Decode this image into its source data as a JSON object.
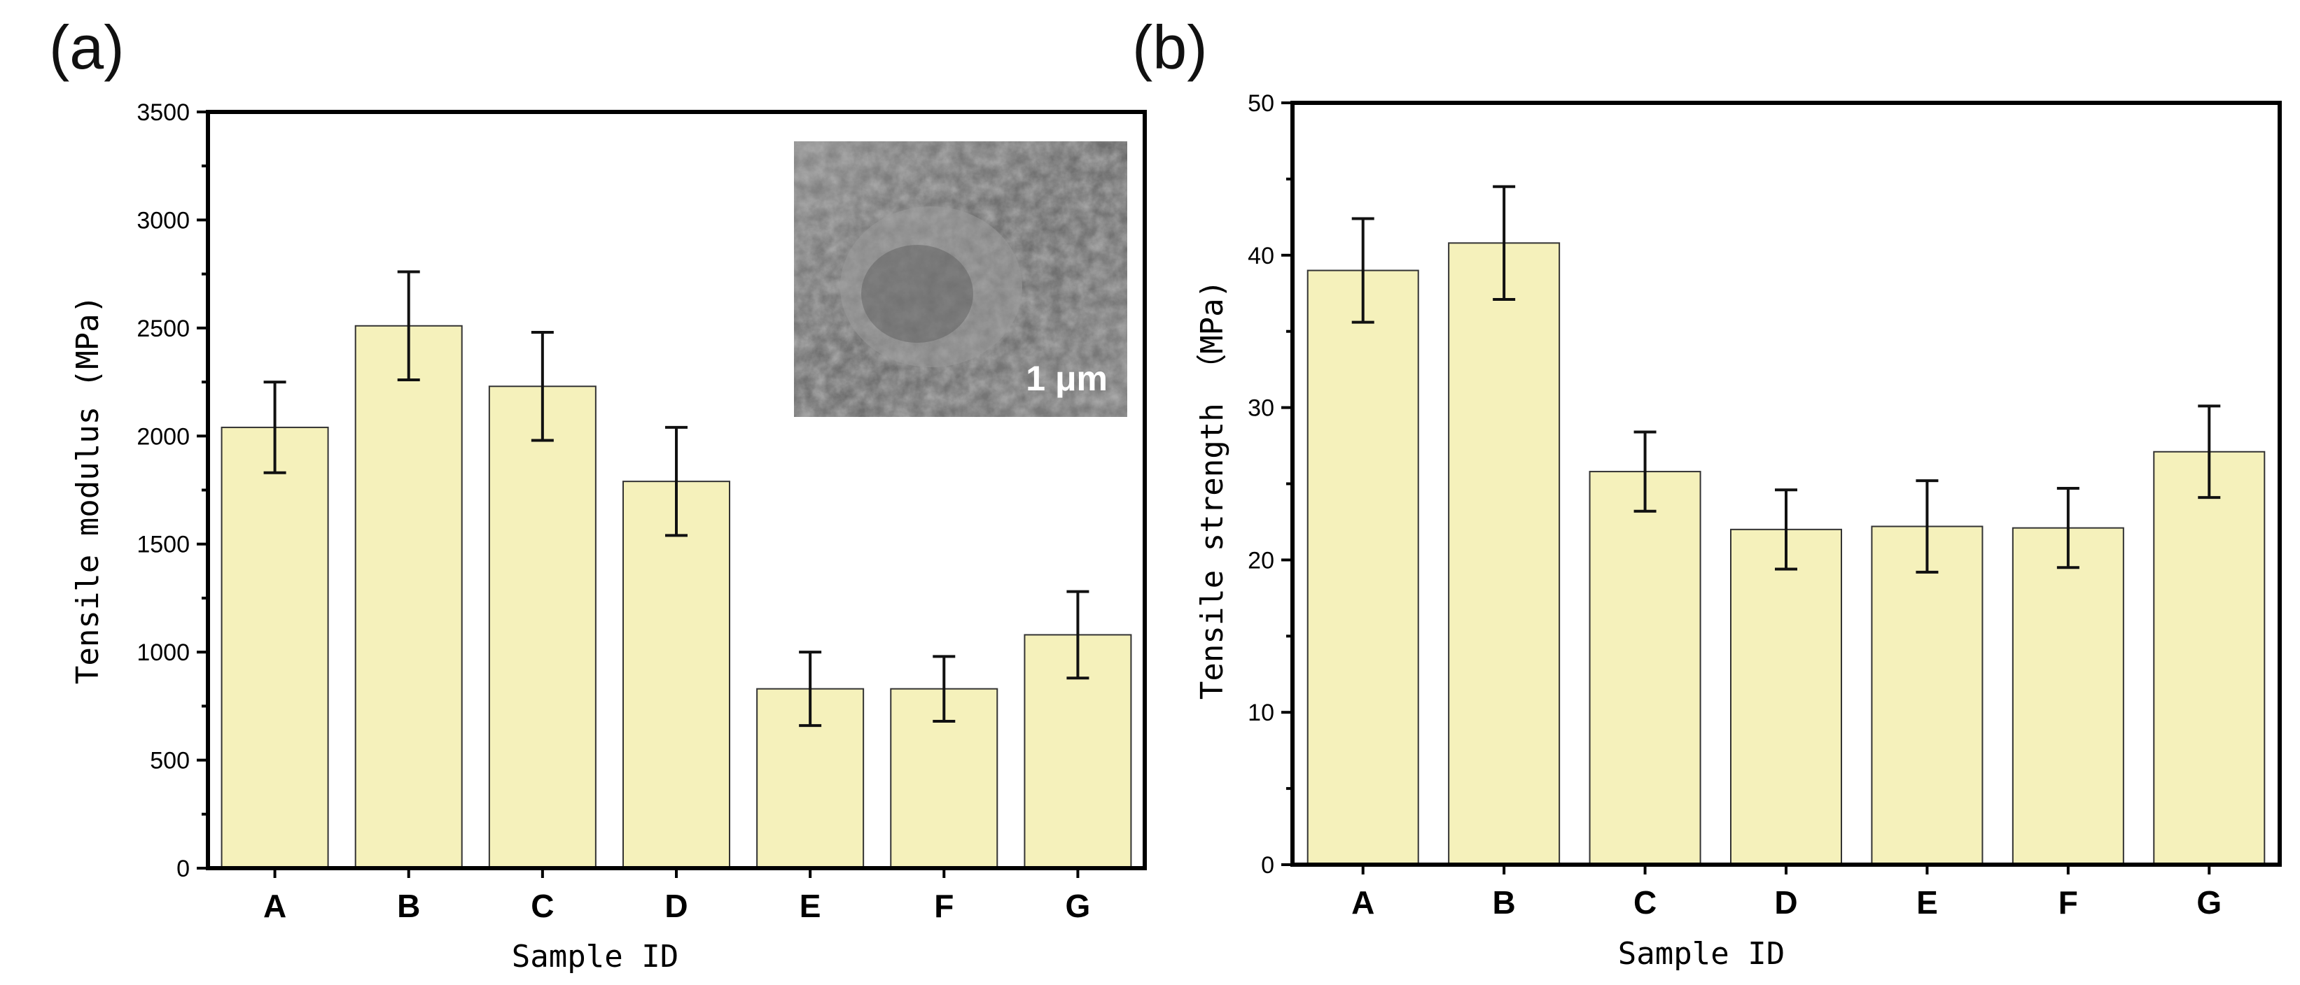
{
  "colors": {
    "bar_fill": "#f5f1bb",
    "bar_stroke": "#333333",
    "axis": "#000000"
  },
  "chart_data": [
    {
      "type": "bar",
      "panel": "(a)",
      "title": "",
      "xlabel": "Sample ID",
      "ylabel": "Tensile modulus (MPa)",
      "ylim": [
        0,
        3500
      ],
      "yticks": [
        0,
        500,
        1000,
        1500,
        2000,
        2500,
        3000,
        3500
      ],
      "categories": [
        "A",
        "B",
        "C",
        "D",
        "E",
        "F",
        "G"
      ],
      "values": [
        2040,
        2510,
        2230,
        1790,
        830,
        830,
        1080
      ],
      "errors": [
        210,
        250,
        250,
        250,
        170,
        150,
        200
      ],
      "grid": false,
      "inset": {
        "kind": "SEM micrograph",
        "scale_label": "1 μm"
      }
    },
    {
      "type": "bar",
      "panel": "(b)",
      "title": "",
      "xlabel": "Sample ID",
      "ylabel": "Tensile strength （MPa)",
      "ylim": [
        0,
        50
      ],
      "yticks": [
        0,
        10,
        20,
        30,
        40,
        50
      ],
      "categories": [
        "A",
        "B",
        "C",
        "D",
        "E",
        "F",
        "G"
      ],
      "values": [
        39.0,
        40.8,
        25.8,
        22.0,
        22.2,
        22.1,
        27.1
      ],
      "errors": [
        3.4,
        3.7,
        2.6,
        2.6,
        3.0,
        2.6,
        3.0
      ],
      "grid": false
    }
  ]
}
